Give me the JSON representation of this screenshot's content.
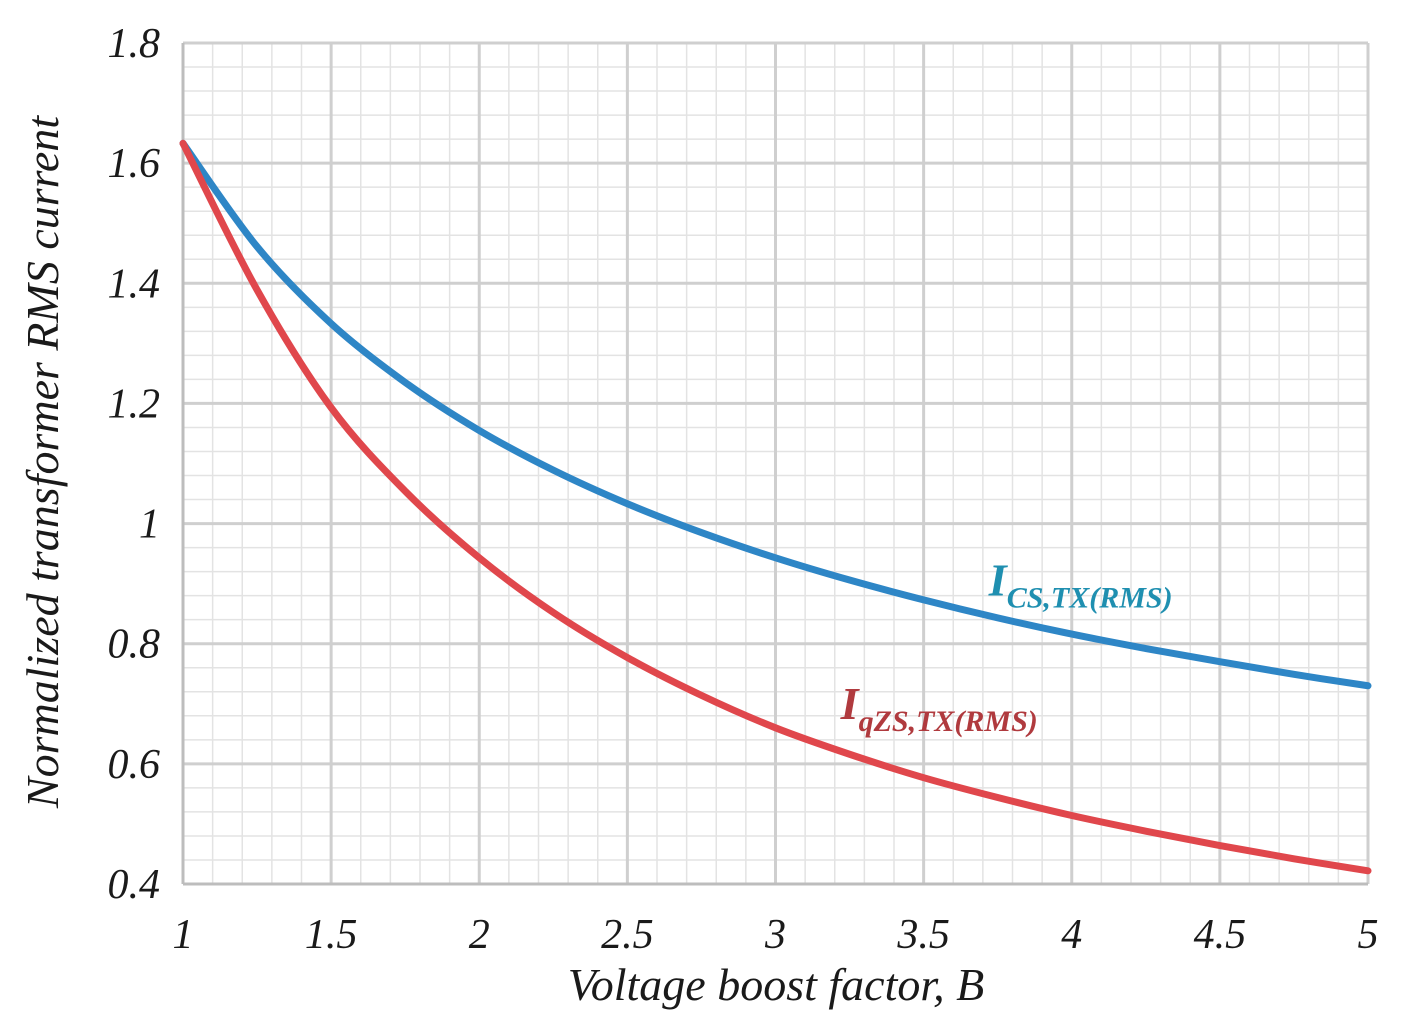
{
  "chart_data": {
    "type": "line",
    "title": "",
    "xlabel": "Voltage boost factor, B",
    "ylabel": "Normalized transformer RMS current",
    "xlim": [
      1,
      5
    ],
    "ylim": [
      0.4,
      1.8
    ],
    "x_ticks": [
      "1",
      "1.5",
      "2",
      "2.5",
      "3",
      "3.5",
      "4",
      "4.5",
      "5"
    ],
    "y_ticks": [
      "0.4",
      "0.6",
      "0.8",
      "1",
      "1.2",
      "1.4",
      "1.6",
      "1.8"
    ],
    "grid": true,
    "series": [
      {
        "name": "I_CS,TX(RMS)",
        "label_main": "I",
        "label_sub": "CS,TX(RMS)",
        "color": "#2e86c6",
        "label_color": "#1f8fb0",
        "x": [
          1.0,
          1.25,
          1.5,
          1.75,
          2.0,
          2.25,
          2.5,
          2.75,
          3.0,
          3.25,
          3.5,
          3.75,
          4.0,
          4.25,
          4.5,
          4.75,
          5.0
        ],
        "y": [
          1.633,
          1.461,
          1.333,
          1.235,
          1.155,
          1.089,
          1.033,
          0.985,
          0.943,
          0.906,
          0.873,
          0.843,
          0.816,
          0.792,
          0.77,
          0.749,
          0.73
        ]
      },
      {
        "name": "I_qZS,TX(RMS)",
        "label_main": "I",
        "label_sub": "qZS,TX(RMS)",
        "color": "#e0474c",
        "label_color": "#b03a3e",
        "x": [
          1.0,
          1.25,
          1.5,
          1.75,
          2.0,
          2.25,
          2.5,
          2.75,
          3.0,
          3.25,
          3.5,
          3.75,
          4.0,
          4.25,
          4.5,
          4.75,
          5.0
        ],
        "y": [
          1.633,
          1.389,
          1.193,
          1.054,
          0.943,
          0.852,
          0.777,
          0.714,
          0.66,
          0.616,
          0.577,
          0.544,
          0.514,
          0.488,
          0.464,
          0.442,
          0.422
        ]
      }
    ],
    "annotations": [
      {
        "series": 0,
        "x": 3.72,
        "y": 0.88
      },
      {
        "series": 1,
        "x": 3.22,
        "y": 0.675
      }
    ]
  }
}
